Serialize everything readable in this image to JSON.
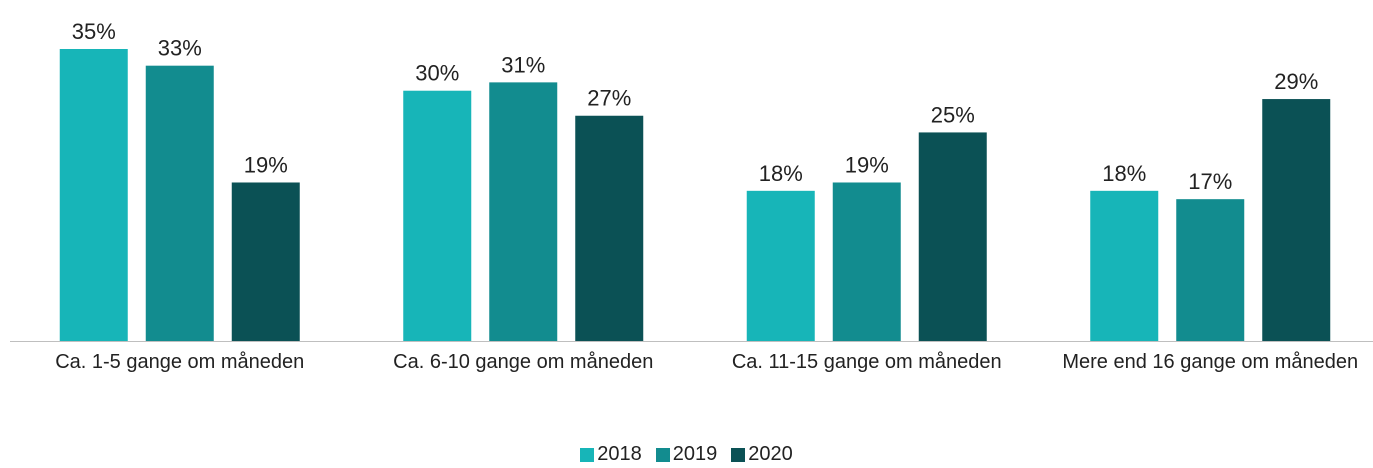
{
  "chart_data": {
    "type": "bar",
    "categories": [
      "Ca. 1-5 gange om måneden",
      "Ca. 6-10 gange om måneden",
      "Ca. 11-15 gange om måneden",
      "Mere end 16 gange om måneden"
    ],
    "series": [
      {
        "name": "2018",
        "color": "#17b5b8",
        "values": [
          35,
          30,
          18,
          18
        ],
        "value_labels": [
          "35%",
          "30%",
          "18%",
          "18%"
        ]
      },
      {
        "name": "2019",
        "color": "#128c8f",
        "values": [
          33,
          31,
          19,
          17
        ],
        "value_labels": [
          "33%",
          "31%",
          "19%",
          "17%"
        ]
      },
      {
        "name": "2020",
        "color": "#0b5155",
        "values": [
          19,
          27,
          25,
          29
        ],
        "value_labels": [
          "19%",
          "27%",
          "25%",
          "29%"
        ]
      }
    ]
  }
}
